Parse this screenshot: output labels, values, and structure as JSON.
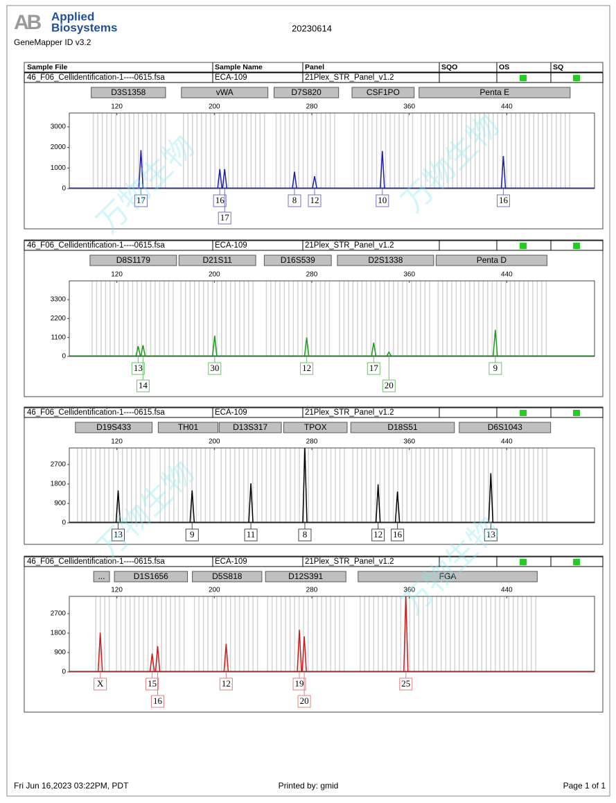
{
  "header": {
    "logo_mark": "AB",
    "logo_line1": "Applied",
    "logo_line2": "Biosystems",
    "date": "20230614",
    "software": "GeneMapper ID v3.2"
  },
  "columns": [
    "Sample File",
    "Sample Name",
    "Panel",
    "SQO",
    "OS",
    "SQ"
  ],
  "samples": [
    {
      "file": "46_F06_Cellidentification-1----0615.fsa",
      "name": "ECA-109",
      "panel": "21Plex_STR_Panel_v1.2"
    },
    {
      "file": "46_F06_Cellidentification-1----0615.fsa",
      "name": "ECA-109",
      "panel": "21Plex_STR_Panel_v1.2"
    },
    {
      "file": "46_F06_Cellidentification-1----0615.fsa",
      "name": "ECA-109",
      "panel": "21Plex_STR_Panel_v1.2"
    },
    {
      "file": "46_F06_Cellidentification-1----0615.fsa",
      "name": "ECA-109",
      "panel": "21Plex_STR_Panel_v1.2"
    }
  ],
  "watermark": "万物生物",
  "chart_data": [
    {
      "type": "line",
      "color": "#1c1ca8",
      "xlim": [
        81,
        512
      ],
      "xticks": [
        120,
        200,
        280,
        360,
        440
      ],
      "ylim": [
        0,
        3670
      ],
      "yticks": [
        0,
        1000,
        2000,
        3000
      ],
      "x": [
        139.8,
        204.5,
        208.5,
        265.8,
        282.3,
        337.9,
        437.2
      ],
      "values": [
        1870,
        950,
        950,
        820,
        600,
        1830,
        1580
      ],
      "alleles": [
        "17",
        "16",
        "17",
        "8",
        "12",
        "10",
        "16"
      ],
      "loci": [
        {
          "name": "D3S1358",
          "range": [
            99,
            160
          ]
        },
        {
          "name": "vWA",
          "range": [
            173,
            244
          ]
        },
        {
          "name": "D7S820",
          "range": [
            249,
            302
          ]
        },
        {
          "name": "CSF1PO",
          "range": [
            313,
            364
          ]
        },
        {
          "name": "Penta E",
          "range": [
            368,
            492
          ]
        }
      ]
    },
    {
      "type": "line",
      "color": "#1a9a1a",
      "xlim": [
        81,
        512
      ],
      "xticks": [
        120,
        200,
        280,
        360,
        440
      ],
      "ylim": [
        0,
        4390
      ],
      "yticks": [
        0,
        1100,
        2200,
        3300
      ],
      "x": [
        137.5,
        141.5,
        200.3,
        275.8,
        330.8,
        343.3,
        430.6
      ],
      "values": [
        600,
        650,
        1200,
        1100,
        800,
        250,
        1550
      ],
      "alleles": [
        "13",
        "14",
        "30",
        "12",
        "17",
        "20",
        "9"
      ],
      "loci": [
        {
          "name": "D8S1179",
          "range": [
            98,
            169
          ]
        },
        {
          "name": "D21S11",
          "range": [
            171,
            234
          ]
        },
        {
          "name": "D16S539",
          "range": [
            241,
            296
          ]
        },
        {
          "name": "D2S1338",
          "range": [
            301,
            380
          ]
        },
        {
          "name": "Penta D",
          "range": [
            382,
            473
          ]
        }
      ]
    },
    {
      "type": "line",
      "color": "#000000",
      "xlim": [
        81,
        512
      ],
      "xticks": [
        120,
        200,
        280,
        360,
        440
      ],
      "ylim": [
        0,
        3470
      ],
      "yticks": [
        0,
        900,
        1800,
        2700
      ],
      "x": [
        121.1,
        181.8,
        230.0,
        274.3,
        334.4,
        350.3,
        426.9
      ],
      "values": [
        1500,
        1500,
        1830,
        3470,
        1780,
        1450,
        2300
      ],
      "alleles": [
        "13",
        "9",
        "11",
        "8",
        "12",
        "16",
        "13"
      ],
      "loci": [
        {
          "name": "D19S433",
          "range": [
            86,
            149
          ]
        },
        {
          "name": "TH01",
          "range": [
            154,
            203
          ]
        },
        {
          "name": "D13S317",
          "range": [
            204,
            255
          ]
        },
        {
          "name": "TPOX",
          "range": [
            257,
            309
          ]
        },
        {
          "name": "D18S51",
          "range": [
            312,
            397
          ]
        },
        {
          "name": "D6S1043",
          "range": [
            401,
            476
          ]
        }
      ]
    },
    {
      "type": "line",
      "color": "#cc1a1a",
      "xlim": [
        81,
        512
      ],
      "xticks": [
        120,
        200,
        280,
        360,
        440
      ],
      "ylim": [
        0,
        3500
      ],
      "yticks": [
        0,
        900,
        1800,
        2700
      ],
      "x": [
        106.4,
        149.0,
        153.5,
        209.7,
        269.8,
        273.8,
        357.2
      ],
      "values": [
        1820,
        850,
        1200,
        1300,
        1950,
        1650,
        3500
      ],
      "alleles": [
        "X",
        "15",
        "16",
        "12",
        "19",
        "20",
        "25"
      ],
      "loci": [
        {
          "name": "...",
          "range": [
            101,
            114
          ]
        },
        {
          "name": "D1S1656",
          "range": [
            118,
            178
          ]
        },
        {
          "name": "D5S818",
          "range": [
            182,
            239
          ]
        },
        {
          "name": "D12S391",
          "range": [
            242,
            308
          ]
        },
        {
          "name": "FGA",
          "range": [
            318,
            465
          ]
        }
      ]
    }
  ],
  "footer": {
    "printed_at": "Fri Jun 16,2023 03:22PM, PDT",
    "printed_by": "Printed by: gmid",
    "page": "Page 1 of 1"
  }
}
